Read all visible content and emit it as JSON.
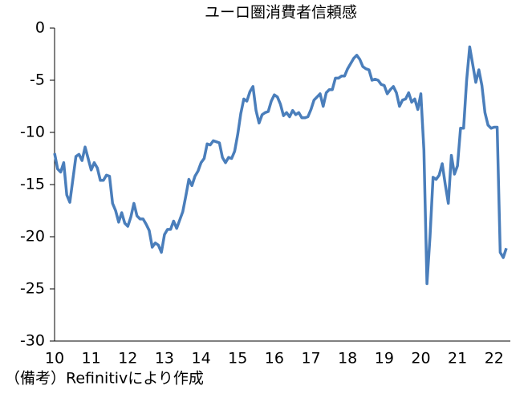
{
  "chart_data": {
    "type": "line",
    "title": "ユーロ圏消費者信頼感",
    "note": "（備考）Refinitivにより作成",
    "categories": [
      "10",
      null,
      null,
      null,
      null,
      null,
      null,
      null,
      null,
      null,
      null,
      null,
      "11",
      null,
      null,
      null,
      null,
      null,
      null,
      null,
      null,
      null,
      null,
      null,
      "12",
      null,
      null,
      null,
      null,
      null,
      null,
      null,
      null,
      null,
      null,
      null,
      "13",
      null,
      null,
      null,
      null,
      null,
      null,
      null,
      null,
      null,
      null,
      null,
      "14",
      null,
      null,
      null,
      null,
      null,
      null,
      null,
      null,
      null,
      null,
      null,
      "15",
      null,
      null,
      null,
      null,
      null,
      null,
      null,
      null,
      null,
      null,
      null,
      "16",
      null,
      null,
      null,
      null,
      null,
      null,
      null,
      null,
      null,
      null,
      null,
      "17",
      null,
      null,
      null,
      null,
      null,
      null,
      null,
      null,
      null,
      null,
      null,
      "18",
      null,
      null,
      null,
      null,
      null,
      null,
      null,
      null,
      null,
      null,
      null,
      "19",
      null,
      null,
      null,
      null,
      null,
      null,
      null,
      null,
      null,
      null,
      null,
      "20",
      null,
      null,
      null,
      null,
      null,
      null,
      null,
      null,
      null,
      null,
      null,
      "21",
      null,
      null,
      null,
      null,
      null,
      null,
      null,
      null,
      null,
      null,
      null,
      "22",
      null,
      null,
      null,
      null
    ],
    "series": [
      {
        "color": "#4a7ebb",
        "values": [
          -12.0,
          -13.5,
          -13.8,
          -12.9,
          -16.0,
          -16.7,
          -14.5,
          -12.3,
          -12.1,
          -12.7,
          -11.4,
          -12.5,
          -13.6,
          -12.9,
          -13.4,
          -14.6,
          -14.6,
          -14.1,
          -14.2,
          -16.8,
          -17.5,
          -18.6,
          -17.7,
          -18.7,
          -19.0,
          -18.1,
          -16.8,
          -18.0,
          -18.3,
          -18.3,
          -18.8,
          -19.4,
          -21.0,
          -20.6,
          -20.8,
          -21.5,
          -19.8,
          -19.3,
          -19.3,
          -18.5,
          -19.2,
          -18.4,
          -17.6,
          -16.1,
          -14.5,
          -15.1,
          -14.2,
          -13.7,
          -12.9,
          -12.5,
          -11.1,
          -11.2,
          -10.8,
          -10.9,
          -11.0,
          -12.4,
          -12.9,
          -12.4,
          -12.5,
          -11.8,
          -10.2,
          -8.2,
          -6.8,
          -7.0,
          -6.1,
          -5.6,
          -7.9,
          -9.1,
          -8.3,
          -8.1,
          -8.0,
          -7.0,
          -6.4,
          -6.6,
          -7.3,
          -8.4,
          -8.1,
          -8.5,
          -7.9,
          -8.3,
          -8.1,
          -8.6,
          -8.6,
          -8.5,
          -7.8,
          -6.9,
          -6.6,
          -6.3,
          -7.5,
          -6.2,
          -5.9,
          -5.9,
          -4.8,
          -4.8,
          -4.6,
          -4.6,
          -3.9,
          -3.4,
          -2.9,
          -2.6,
          -3.0,
          -3.7,
          -3.9,
          -4.0,
          -5.0,
          -4.9,
          -5.0,
          -5.4,
          -5.5,
          -6.3,
          -5.9,
          -5.6,
          -6.2,
          -7.5,
          -6.9,
          -6.8,
          -6.2,
          -7.1,
          -6.8,
          -7.8,
          -6.3,
          -11.7,
          -24.5,
          -20.0,
          -14.3,
          -14.5,
          -14.1,
          -13.0,
          -15.0,
          -16.8,
          -12.2,
          -14.0,
          -13.2,
          -9.6,
          -9.6,
          -5.0,
          -1.8,
          -3.5,
          -5.2,
          -4.0,
          -5.5,
          -8.1,
          -9.3,
          -9.6,
          -9.5,
          -9.5,
          -21.5,
          -22.0,
          -21.1
        ]
      }
    ],
    "ylim": [
      -30,
      0
    ],
    "yticks": [
      -30,
      -25,
      -20,
      -15,
      -10,
      -5,
      0
    ],
    "grid": false
  }
}
